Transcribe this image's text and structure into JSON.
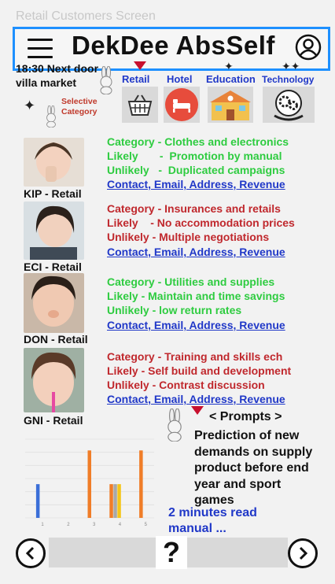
{
  "screen_title": "Retail Customers Screen",
  "header": {
    "title": "DekDee AbsSelf"
  },
  "status": {
    "time_store_line1": "18:30 Next door",
    "time_store_line2": "villa market"
  },
  "selective": {
    "line1": "Selective",
    "line2": "Category"
  },
  "tabs": [
    {
      "label": "Retail",
      "icon": "basket-icon"
    },
    {
      "label": "Hotel",
      "icon": "bed-icon"
    },
    {
      "label": "Education",
      "icon": "school-icon"
    },
    {
      "label": "Technology",
      "icon": "gears-icon"
    }
  ],
  "customers": [
    {
      "label": "KIP - Retail",
      "color": "green",
      "category": "Category - Clothes and electronics",
      "likely": "Likely       -  Promotion by manual",
      "unlikely": "Unlikely   -  Duplicated campaigns",
      "contact": "Contact, Email, Address, Revenue"
    },
    {
      "label": "ECI - Retail",
      "color": "red",
      "category": "Category - Insurances and retails",
      "likely": "Likely    - No accommodation prices",
      "unlikely": "Unlikely - Multiple negotiations",
      "contact": "Contact, Email, Address, Revenue"
    },
    {
      "label": "DON - Retail",
      "color": "green",
      "category": "Category - Utilities and supplies",
      "likely": "Likely - Maintain and time savings",
      "unlikely": "Unlikely - low return rates",
      "contact": "Contact, Email, Address, Revenue"
    },
    {
      "label": "GNI - Retail",
      "color": "red",
      "category": "Category - Training and skills ech",
      "likely": "Likely - Self build and development",
      "unlikely": "Unlikely - Contrast discussion",
      "contact": "Contact, Email, Address, Revenue"
    }
  ],
  "prompts": {
    "title": "< Prompts >",
    "body": "Prediction of new demands on supply product before end year and sport games",
    "read_more": "2 minutes read manual ..."
  },
  "help": "?",
  "chart_data": {
    "type": "bar",
    "categories": [
      "1",
      "2",
      "3",
      "4",
      "5"
    ],
    "series": [
      {
        "color": "#3b6fd8",
        "values": [
          3,
          0,
          0,
          0,
          0
        ]
      },
      {
        "color": "#f07d28",
        "values": [
          0,
          0,
          6,
          3,
          6
        ]
      },
      {
        "color": "#a8a8a8",
        "values": [
          0,
          0,
          0,
          3,
          0
        ]
      },
      {
        "color": "#f5c518",
        "values": [
          0,
          0,
          0,
          3,
          0
        ]
      }
    ],
    "ylim": [
      0,
      7
    ],
    "grid": true
  },
  "colors": {
    "header_border": "#1e90ff",
    "link": "#2038c8",
    "green": "#2ecc40",
    "red": "#c0282d",
    "marker": "#c8102e"
  }
}
